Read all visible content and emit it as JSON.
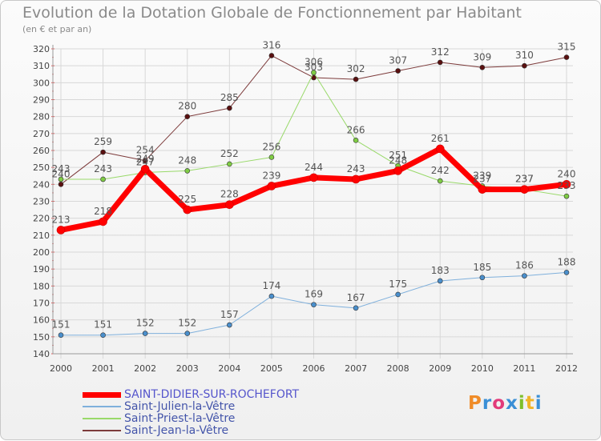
{
  "header": {
    "title": "Evolution de la Dotation Globale de Fonctionnement par Habitant",
    "subtitle": "(en € et par an)"
  },
  "logo": {
    "text": "Proxiti",
    "letters": [
      "P",
      "r",
      "o",
      "x",
      "i",
      "t",
      "i"
    ],
    "colors": [
      "#f08c28",
      "#3a8fd6",
      "#e23b7a",
      "#3a8fd6",
      "#7fbf2a",
      "#f0b428",
      "#3a8fd6"
    ]
  },
  "chart_data": {
    "type": "line",
    "title": "Evolution de la Dotation Globale de Fonctionnement par Habitant",
    "subtitle": "(en € et par an)",
    "xlabel": "",
    "ylabel": "",
    "x": [
      "2000",
      "2001",
      "2002",
      "2003",
      "2004",
      "2005",
      "2006",
      "2007",
      "2008",
      "2009",
      "2010",
      "2011",
      "2012"
    ],
    "ylim": [
      140,
      320
    ],
    "yticks": [
      140,
      150,
      160,
      170,
      180,
      190,
      200,
      210,
      220,
      230,
      240,
      250,
      260,
      270,
      280,
      290,
      300,
      310,
      320
    ],
    "grid": true,
    "legend_position": "bottom-left",
    "series": [
      {
        "name": "Saint-Jean-la-Vêtre",
        "color": "#7d3b3b",
        "marker": "#5a1010",
        "width": 1,
        "values": [
          240,
          259,
          254,
          280,
          285,
          316,
          303,
          302,
          307,
          312,
          309,
          310,
          315
        ]
      },
      {
        "name": "Saint-Priest-la-Vêtre",
        "color": "#99d96a",
        "marker": "#7fcc44",
        "width": 1,
        "values": [
          243,
          243,
          247,
          248,
          252,
          256,
          306,
          266,
          251,
          242,
          239,
          237,
          233
        ]
      },
      {
        "name": "Saint-Julien-la-Vêtre",
        "color": "#7fb0dc",
        "marker": "#4a8fcc",
        "width": 1,
        "values": [
          151,
          151,
          152,
          152,
          157,
          174,
          169,
          167,
          175,
          183,
          185,
          186,
          188
        ]
      },
      {
        "name": "SAINT-DIDIER-SUR-ROCHEFORT",
        "color": "#ff0000",
        "marker": "#ff0000",
        "width": 7,
        "values": [
          213,
          218,
          249,
          225,
          228,
          239,
          244,
          243,
          248,
          261,
          237,
          237,
          240
        ]
      }
    ],
    "legend_order": [
      "SAINT-DIDIER-SUR-ROCHEFORT",
      "Saint-Julien-la-Vêtre",
      "Saint-Priest-la-Vêtre",
      "Saint-Jean-la-Vêtre"
    ]
  }
}
